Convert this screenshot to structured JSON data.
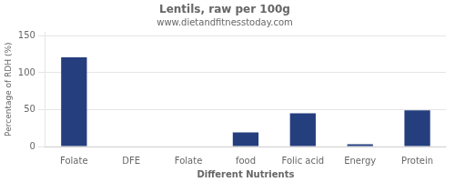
{
  "chart_data": {
    "type": "bar",
    "title": "Lentils, raw per 100g",
    "subtitle": "www.dietandfitnesstoday.com",
    "xlabel": "Different Nutrients",
    "ylabel": "Percentage of RDH (%)",
    "categories": [
      "Folate",
      "DFE",
      "Folate",
      "food",
      "Folic acid",
      "Energy",
      "Protein"
    ],
    "values": [
      121,
      0.5,
      0.5,
      19,
      45,
      3,
      49
    ],
    "color": "#253E7E",
    "ylim": [
      0,
      155
    ],
    "yticks": [
      0,
      50,
      100,
      150
    ],
    "grid": true
  }
}
